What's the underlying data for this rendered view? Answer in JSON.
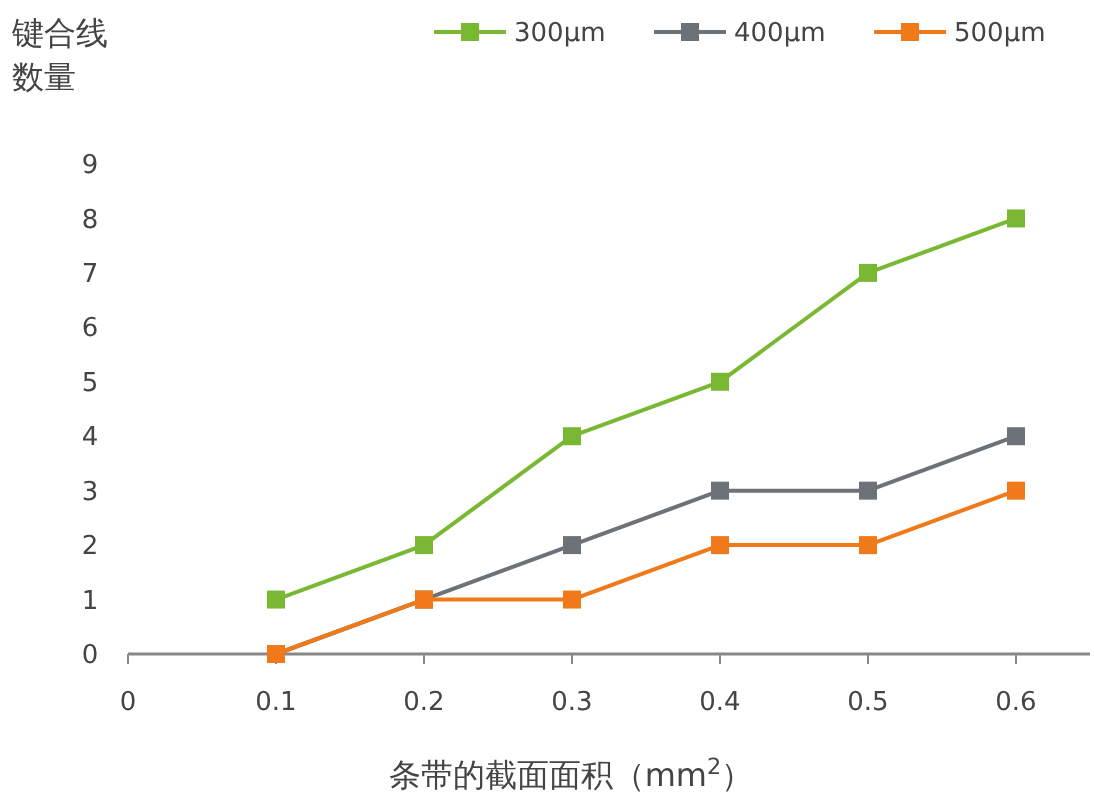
{
  "chart_data": {
    "type": "line",
    "ylabel": "键合线数量",
    "xlabel": "条带的截面面积（mm$^{2}$）",
    "x": [
      0.1,
      0.2,
      0.3,
      0.4,
      0.5,
      0.6
    ],
    "series": [
      {
        "name": "300μm",
        "color": "#7ab833",
        "values": [
          1,
          2,
          4,
          5,
          7,
          8
        ]
      },
      {
        "name": "400μm",
        "color": "#6d7278",
        "values": [
          0,
          1,
          2,
          3,
          3,
          4
        ]
      },
      {
        "name": "500μm",
        "color": "#f07a1a",
        "values": [
          0,
          1,
          1,
          2,
          2,
          3
        ]
      }
    ],
    "xlim": [
      0,
      0.65
    ],
    "xticks": [
      0,
      0.1,
      0.2,
      0.3,
      0.4,
      0.5,
      0.6
    ],
    "ylim": [
      0,
      9
    ],
    "yticks": [
      0,
      1,
      2,
      3,
      4,
      5,
      6,
      7,
      8,
      9
    ],
    "grid": false,
    "legend": "top right",
    "marker": "square",
    "line_style": "solid"
  }
}
